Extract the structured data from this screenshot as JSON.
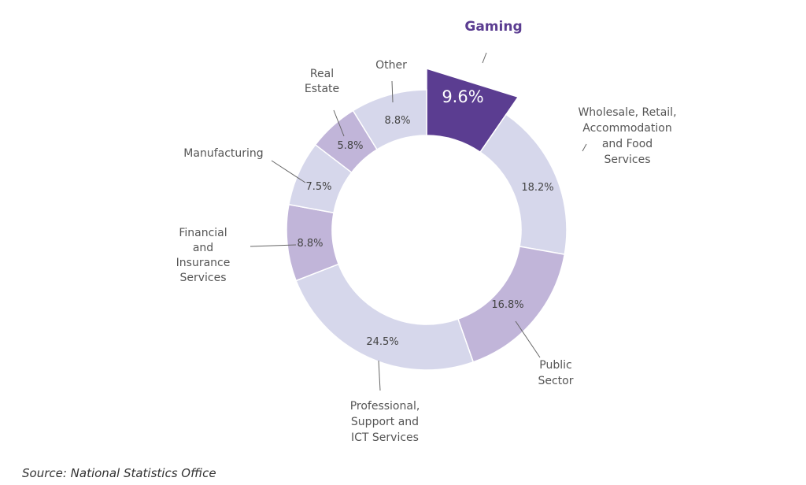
{
  "chart_data": {
    "type": "pie",
    "style": "donut",
    "categories": [
      "Gaming",
      "Wholesale, Retail, Accommodation and Food Services",
      "Public Sector",
      "Professional, Support and ICT Services",
      "Financial and Insurance Services",
      "Manufacturing",
      "Real Estate",
      "Other"
    ],
    "values": [
      9.6,
      18.2,
      16.8,
      24.5,
      8.8,
      7.5,
      5.8,
      8.8
    ],
    "value_labels": [
      "9.6%",
      "18.2%",
      "16.8%",
      "24.5%",
      "8.8%",
      "7.5%",
      "5.8%",
      "8.8%"
    ],
    "highlighted": "Gaming",
    "colors": [
      "#5b3d91",
      "#d6d7eb",
      "#c1b5d9",
      "#d6d7eb",
      "#c1b5d9",
      "#d6d7eb",
      "#c1b5d9",
      "#d6d7eb"
    ],
    "highlight_label_color": "#5b3d91"
  },
  "source": "Source: National Statistics Office"
}
